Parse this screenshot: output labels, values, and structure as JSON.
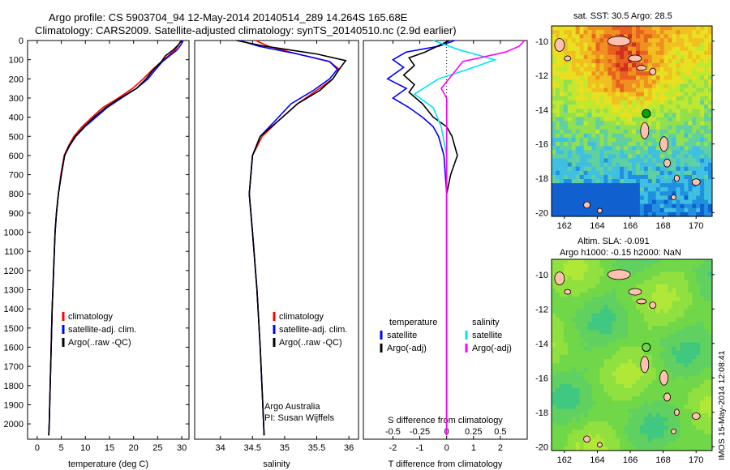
{
  "title": {
    "line1": "Argo profile: CS 5903704_94 12-May-2014 20140514_289 14.264S 165.68E",
    "line2": "Climatology: CARS2009. Satellite-adjusted climatology: synTS_20140510.nc (2.9d earlier)"
  },
  "colors": {
    "climatology": "#ff0000",
    "satellite": "#0000ff",
    "argo": "#000000",
    "sat_salinity": "#00e5ee",
    "argo_salinity": "#ff00ff",
    "marker": "#00aa00"
  },
  "chart_data": [
    {
      "type": "line",
      "name": "temperature",
      "xlabel": "temperature (deg C)",
      "ylabel": "",
      "xlim": [
        -2,
        31.5
      ],
      "ylim": [
        2080,
        0
      ],
      "xticks": [
        0,
        5,
        10,
        15,
        20,
        25,
        30
      ],
      "yticks": [
        0,
        100,
        200,
        300,
        400,
        500,
        600,
        700,
        800,
        900,
        1000,
        1100,
        1200,
        1300,
        1400,
        1500,
        1600,
        1700,
        1800,
        1900,
        2000
      ],
      "series": [
        {
          "name": "climatology",
          "color": "#ff0000",
          "points": [
            [
              29.8,
              0
            ],
            [
              29.4,
              20
            ],
            [
              28.6,
              50
            ],
            [
              27.2,
              80
            ],
            [
              25.8,
              110
            ],
            [
              24,
              150
            ],
            [
              22,
              200
            ],
            [
              19.8,
              250
            ],
            [
              16.8,
              300
            ],
            [
              13.6,
              350
            ],
            [
              11.4,
              400
            ],
            [
              9.3,
              450
            ],
            [
              7.6,
              500
            ],
            [
              6.5,
              550
            ],
            [
              5.6,
              600
            ],
            [
              4.9,
              700
            ],
            [
              4.4,
              800
            ],
            [
              4.0,
              900
            ],
            [
              3.7,
              1000
            ],
            [
              3.4,
              1200
            ],
            [
              3.1,
              1400
            ],
            [
              2.9,
              1600
            ],
            [
              2.7,
              1800
            ],
            [
              2.5,
              2000
            ],
            [
              2.4,
              2060
            ]
          ]
        },
        {
          "name": "satellite-adj. clim.",
          "color": "#0000ff",
          "points": [
            [
              30.3,
              0
            ],
            [
              29.9,
              20
            ],
            [
              29.0,
              50
            ],
            [
              27.5,
              80
            ],
            [
              26.0,
              110
            ],
            [
              24.6,
              150
            ],
            [
              23,
              200
            ],
            [
              20.6,
              250
            ],
            [
              17.5,
              300
            ],
            [
              14.5,
              350
            ],
            [
              12.2,
              400
            ],
            [
              9.9,
              450
            ],
            [
              8.0,
              500
            ],
            [
              6.7,
              550
            ],
            [
              5.7,
              600
            ],
            [
              5.0,
              700
            ],
            [
              4.4,
              800
            ],
            [
              4.0,
              900
            ],
            [
              3.7,
              1000
            ],
            [
              3.4,
              1200
            ],
            [
              3.1,
              1400
            ],
            [
              2.9,
              1600
            ],
            [
              2.7,
              1800
            ],
            [
              2.5,
              2000
            ],
            [
              2.4,
              2060
            ]
          ]
        },
        {
          "name": "Argo(..raw -QC)",
          "color": "#000000",
          "points": [
            [
              30.0,
              0
            ],
            [
              29.4,
              20
            ],
            [
              28.2,
              50
            ],
            [
              26.6,
              80
            ],
            [
              25.8,
              110
            ],
            [
              24.2,
              150
            ],
            [
              22.6,
              200
            ],
            [
              20.6,
              250
            ],
            [
              17.2,
              300
            ],
            [
              14.2,
              350
            ],
            [
              11.8,
              400
            ],
            [
              9.7,
              450
            ],
            [
              7.9,
              500
            ],
            [
              6.6,
              550
            ],
            [
              5.7,
              600
            ],
            [
              5.0,
              700
            ],
            [
              4.4,
              800
            ],
            [
              4.0,
              900
            ],
            [
              3.7,
              1000
            ],
            [
              3.4,
              1200
            ],
            [
              3.1,
              1400
            ],
            [
              2.9,
              1600
            ],
            [
              2.7,
              1800
            ],
            [
              2.5,
              2000
            ],
            [
              2.4,
              2060
            ]
          ]
        }
      ],
      "legend": [
        "climatology",
        "satellite-adj. clim.",
        "Argo(..raw -QC)"
      ]
    },
    {
      "type": "line",
      "name": "salinity",
      "xlabel": "salinity",
      "xlim": [
        33.6,
        36.15
      ],
      "ylim": [
        2080,
        0
      ],
      "xticks": [
        34,
        34.5,
        35,
        35.5,
        36
      ],
      "annotation": [
        "Argo Australia",
        "PI: Susan Wijffels"
      ],
      "series": [
        {
          "name": "climatology",
          "color": "#ff0000",
          "points": [
            [
              34.55,
              0
            ],
            [
              34.75,
              30
            ],
            [
              35.2,
              70
            ],
            [
              35.7,
              110
            ],
            [
              35.85,
              150
            ],
            [
              35.75,
              200
            ],
            [
              35.5,
              260
            ],
            [
              35.2,
              330
            ],
            [
              34.9,
              420
            ],
            [
              34.65,
              500
            ],
            [
              34.5,
              600
            ],
            [
              34.45,
              800
            ],
            [
              34.5,
              1000
            ],
            [
              34.57,
              1300
            ],
            [
              34.62,
              1600
            ],
            [
              34.66,
              1900
            ],
            [
              34.68,
              2060
            ]
          ]
        },
        {
          "name": "satellite-adj. clim.",
          "color": "#0000ff",
          "points": [
            [
              34.3,
              0
            ],
            [
              34.6,
              30
            ],
            [
              35.2,
              70
            ],
            [
              35.7,
              110
            ],
            [
              35.82,
              150
            ],
            [
              35.7,
              200
            ],
            [
              35.45,
              260
            ],
            [
              35.1,
              330
            ],
            [
              34.85,
              420
            ],
            [
              34.62,
              500
            ],
            [
              34.5,
              600
            ],
            [
              34.45,
              800
            ],
            [
              34.5,
              1000
            ],
            [
              34.57,
              1300
            ],
            [
              34.62,
              1600
            ],
            [
              34.66,
              1900
            ],
            [
              34.68,
              2060
            ]
          ]
        },
        {
          "name": "Argo(..raw -QC)",
          "color": "#000000",
          "points": [
            [
              34.25,
              0
            ],
            [
              34.7,
              30
            ],
            [
              35.5,
              70
            ],
            [
              35.95,
              105
            ],
            [
              35.85,
              150
            ],
            [
              35.75,
              200
            ],
            [
              35.55,
              260
            ],
            [
              35.2,
              330
            ],
            [
              34.9,
              420
            ],
            [
              34.62,
              500
            ],
            [
              34.5,
              600
            ],
            [
              34.45,
              800
            ],
            [
              34.5,
              1000
            ],
            [
              34.57,
              1300
            ],
            [
              34.62,
              1600
            ],
            [
              34.66,
              1900
            ],
            [
              34.68,
              2060
            ]
          ]
        }
      ],
      "legend": [
        "climatology",
        "satellite-adj. clim.",
        "Argo(..raw -QC)"
      ]
    },
    {
      "type": "line",
      "name": "difference",
      "xlabel": "T difference from climatology",
      "xlabel2": "S difference from climatology",
      "xlim": [
        -3.1,
        3.0
      ],
      "ylim": [
        2080,
        0
      ],
      "xticks": [
        -2,
        -1,
        0,
        1,
        2
      ],
      "xticks2": [
        {
          "v": -2,
          "t": "-0.5"
        },
        {
          "v": -1,
          "t": "-0.25"
        },
        {
          "v": 0,
          "t": "0"
        },
        {
          "v": 1,
          "t": "0.25"
        },
        {
          "v": 2,
          "t": "0.5"
        }
      ],
      "legend_title_temperature": "temperature",
      "legend_title_salinity": "salinity",
      "series": [
        {
          "name": "satellite",
          "group": "temperature",
          "color": "#0000ff",
          "points": [
            [
              0.3,
              0
            ],
            [
              -0.3,
              30
            ],
            [
              -1.5,
              60
            ],
            [
              -2.0,
              100
            ],
            [
              -1.6,
              140
            ],
            [
              -2.2,
              200
            ],
            [
              -1.5,
              250
            ],
            [
              -2.0,
              300
            ],
            [
              -1.4,
              350
            ],
            [
              -0.9,
              400
            ],
            [
              -0.5,
              450
            ],
            [
              -0.3,
              500
            ],
            [
              -0.1,
              600
            ],
            [
              0,
              800
            ],
            [
              0,
              1200
            ],
            [
              0,
              2060
            ]
          ]
        },
        {
          "name": "Argo(-adj)",
          "group": "temperature",
          "color": "#000000",
          "points": [
            [
              0.1,
              0
            ],
            [
              -0.8,
              60
            ],
            [
              -1.4,
              90
            ],
            [
              -1.2,
              130
            ],
            [
              -1.6,
              180
            ],
            [
              -1.2,
              230
            ],
            [
              -1.4,
              270
            ],
            [
              -0.9,
              330
            ],
            [
              -0.5,
              400
            ],
            [
              0,
              450
            ],
            [
              0.2,
              500
            ],
            [
              0.4,
              600
            ],
            [
              0.15,
              700
            ],
            [
              0,
              800
            ],
            [
              0,
              1100
            ],
            [
              0,
              2060
            ]
          ]
        },
        {
          "name": "satellite",
          "group": "salinity",
          "color": "#00e5ee",
          "points": [
            [
              -0.5,
              0
            ],
            [
              0.5,
              50
            ],
            [
              1.8,
              100
            ],
            [
              0.8,
              150
            ],
            [
              -0.3,
              200
            ],
            [
              -1.2,
              280
            ],
            [
              -0.5,
              350
            ],
            [
              -0.2,
              450
            ],
            [
              0,
              600
            ],
            [
              0,
              2060
            ]
          ]
        },
        {
          "name": "Argo(-adj)",
          "group": "salinity",
          "color": "#ff00ff",
          "points": [
            [
              2.9,
              0
            ],
            [
              2.7,
              30
            ],
            [
              2.2,
              60
            ],
            [
              0.6,
              110
            ],
            [
              0.2,
              180
            ],
            [
              -0.2,
              250
            ],
            [
              0,
              300
            ],
            [
              0,
              2060
            ]
          ]
        }
      ]
    }
  ],
  "maps": {
    "top": {
      "title": "sat. SST: 30.5  Argo: 28.5",
      "xticks": [
        "162",
        "164",
        "166",
        "168",
        "170"
      ],
      "yticks": [
        "-10",
        "-12",
        "-14",
        "-16",
        "-18",
        "-20"
      ]
    },
    "bottom": {
      "title1": "Altim. SLA: -0.091",
      "title2": "Argo h1000: -0.15 h2000: NaN",
      "xticks": [
        "162",
        "164",
        "166",
        "168",
        "170"
      ],
      "yticks": [
        "-10",
        "-12",
        "-14",
        "-16",
        "-18",
        "-20"
      ]
    }
  },
  "side_text": "IMOS 15-May-2014 12:08:41"
}
